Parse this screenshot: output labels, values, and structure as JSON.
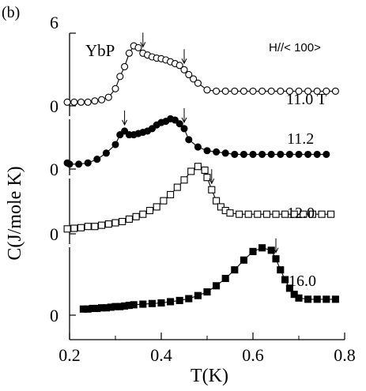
{
  "chart_data": {
    "type": "scatter",
    "panel_label": "(b)",
    "sample_label": "YbP",
    "field_label": "H//< 100>",
    "xlabel": "T(K)",
    "ylabel": "C(J/mole K)",
    "xlim": [
      0.2,
      0.8
    ],
    "x_ticks": [
      "0.2",
      "0.4",
      "0.6",
      "0.8"
    ],
    "y_ticks": [
      "6",
      "0",
      "0",
      "0",
      "0"
    ],
    "grid": false,
    "series": [
      {
        "name": "11.0 T",
        "marker": "open-circle",
        "x": [
          0.195,
          0.21,
          0.225,
          0.24,
          0.255,
          0.27,
          0.285,
          0.3,
          0.31,
          0.32,
          0.33,
          0.34,
          0.35,
          0.36,
          0.37,
          0.38,
          0.39,
          0.4,
          0.41,
          0.42,
          0.43,
          0.44,
          0.45,
          0.46,
          0.47,
          0.48,
          0.5,
          0.52,
          0.54,
          0.56,
          0.58,
          0.6,
          0.62,
          0.64,
          0.66,
          0.68,
          0.7,
          0.72,
          0.74,
          0.76,
          0.78
        ],
        "y": [
          0.3,
          0.3,
          0.3,
          0.3,
          0.4,
          0.5,
          0.7,
          1.4,
          2.4,
          3.2,
          4.3,
          4.9,
          4.75,
          4.3,
          4.15,
          4.0,
          3.9,
          3.85,
          3.75,
          3.6,
          3.45,
          3.3,
          2.95,
          2.55,
          2.2,
          1.85,
          1.3,
          1.2,
          1.2,
          1.2,
          1.2,
          1.2,
          1.2,
          1.2,
          1.2,
          1.2,
          1.2,
          1.2,
          1.2,
          1.2,
          1.2
        ],
        "arrows_at_x": [
          0.36,
          0.45
        ],
        "y_zero": 0
      },
      {
        "name": "11.2",
        "marker": "filled-circle",
        "x": [
          0.195,
          0.2,
          0.22,
          0.24,
          0.26,
          0.28,
          0.3,
          0.31,
          0.32,
          0.33,
          0.34,
          0.35,
          0.36,
          0.37,
          0.38,
          0.39,
          0.4,
          0.41,
          0.42,
          0.43,
          0.44,
          0.45,
          0.46,
          0.48,
          0.5,
          0.52,
          0.54,
          0.56,
          0.58,
          0.6,
          0.62,
          0.64,
          0.66,
          0.68,
          0.7,
          0.72,
          0.74,
          0.76
        ],
        "y": [
          0.5,
          0.4,
          0.4,
          0.5,
          0.8,
          1.3,
          2.0,
          2.8,
          3.1,
          2.8,
          2.8,
          2.9,
          3.0,
          3.1,
          3.3,
          3.6,
          3.8,
          3.9,
          4.1,
          4.0,
          3.7,
          3.3,
          2.4,
          1.8,
          1.5,
          1.4,
          1.3,
          1.2,
          1.2,
          1.2,
          1.2,
          1.2,
          1.2,
          1.2,
          1.2,
          1.2,
          1.2,
          1.2
        ],
        "arrows_at_x": [
          0.32,
          0.45
        ],
        "y_zero": 0
      },
      {
        "name": "12.0",
        "marker": "open-square",
        "x": [
          0.195,
          0.21,
          0.225,
          0.24,
          0.255,
          0.27,
          0.285,
          0.3,
          0.315,
          0.33,
          0.345,
          0.36,
          0.375,
          0.39,
          0.405,
          0.42,
          0.435,
          0.45,
          0.465,
          0.48,
          0.495,
          0.5,
          0.51,
          0.52,
          0.53,
          0.54,
          0.55,
          0.57,
          0.59,
          0.61,
          0.63,
          0.65,
          0.67,
          0.69,
          0.71,
          0.73,
          0.75,
          0.77
        ],
        "y": [
          0.4,
          0.45,
          0.5,
          0.6,
          0.6,
          0.7,
          0.8,
          0.9,
          1.0,
          1.2,
          1.4,
          1.6,
          1.9,
          2.2,
          2.7,
          3.2,
          3.8,
          4.4,
          5.1,
          5.5,
          5.2,
          4.6,
          3.6,
          2.7,
          2.2,
          1.9,
          1.7,
          1.6,
          1.6,
          1.6,
          1.6,
          1.6,
          1.6,
          1.6,
          1.6,
          1.6,
          1.6,
          1.6
        ],
        "arrows_at_x": [
          0.51
        ],
        "y_zero": 0
      },
      {
        "name": "16.0",
        "marker": "filled-square",
        "x": [
          0.23,
          0.24,
          0.25,
          0.26,
          0.27,
          0.28,
          0.29,
          0.3,
          0.31,
          0.32,
          0.33,
          0.34,
          0.36,
          0.38,
          0.4,
          0.42,
          0.44,
          0.46,
          0.48,
          0.5,
          0.52,
          0.54,
          0.56,
          0.58,
          0.6,
          0.62,
          0.64,
          0.65,
          0.66,
          0.67,
          0.68,
          0.69,
          0.7,
          0.72,
          0.74,
          0.76,
          0.78
        ],
        "y": [
          0.5,
          0.5,
          0.55,
          0.55,
          0.6,
          0.6,
          0.65,
          0.7,
          0.7,
          0.75,
          0.8,
          0.85,
          0.9,
          0.95,
          1.0,
          1.1,
          1.2,
          1.35,
          1.6,
          1.9,
          2.4,
          3.0,
          3.7,
          4.5,
          5.2,
          5.5,
          5.3,
          4.6,
          3.7,
          2.9,
          2.2,
          1.7,
          1.4,
          1.3,
          1.3,
          1.3,
          1.3
        ],
        "arrows_at_x": [
          0.65
        ],
        "y_zero": 0
      }
    ]
  }
}
